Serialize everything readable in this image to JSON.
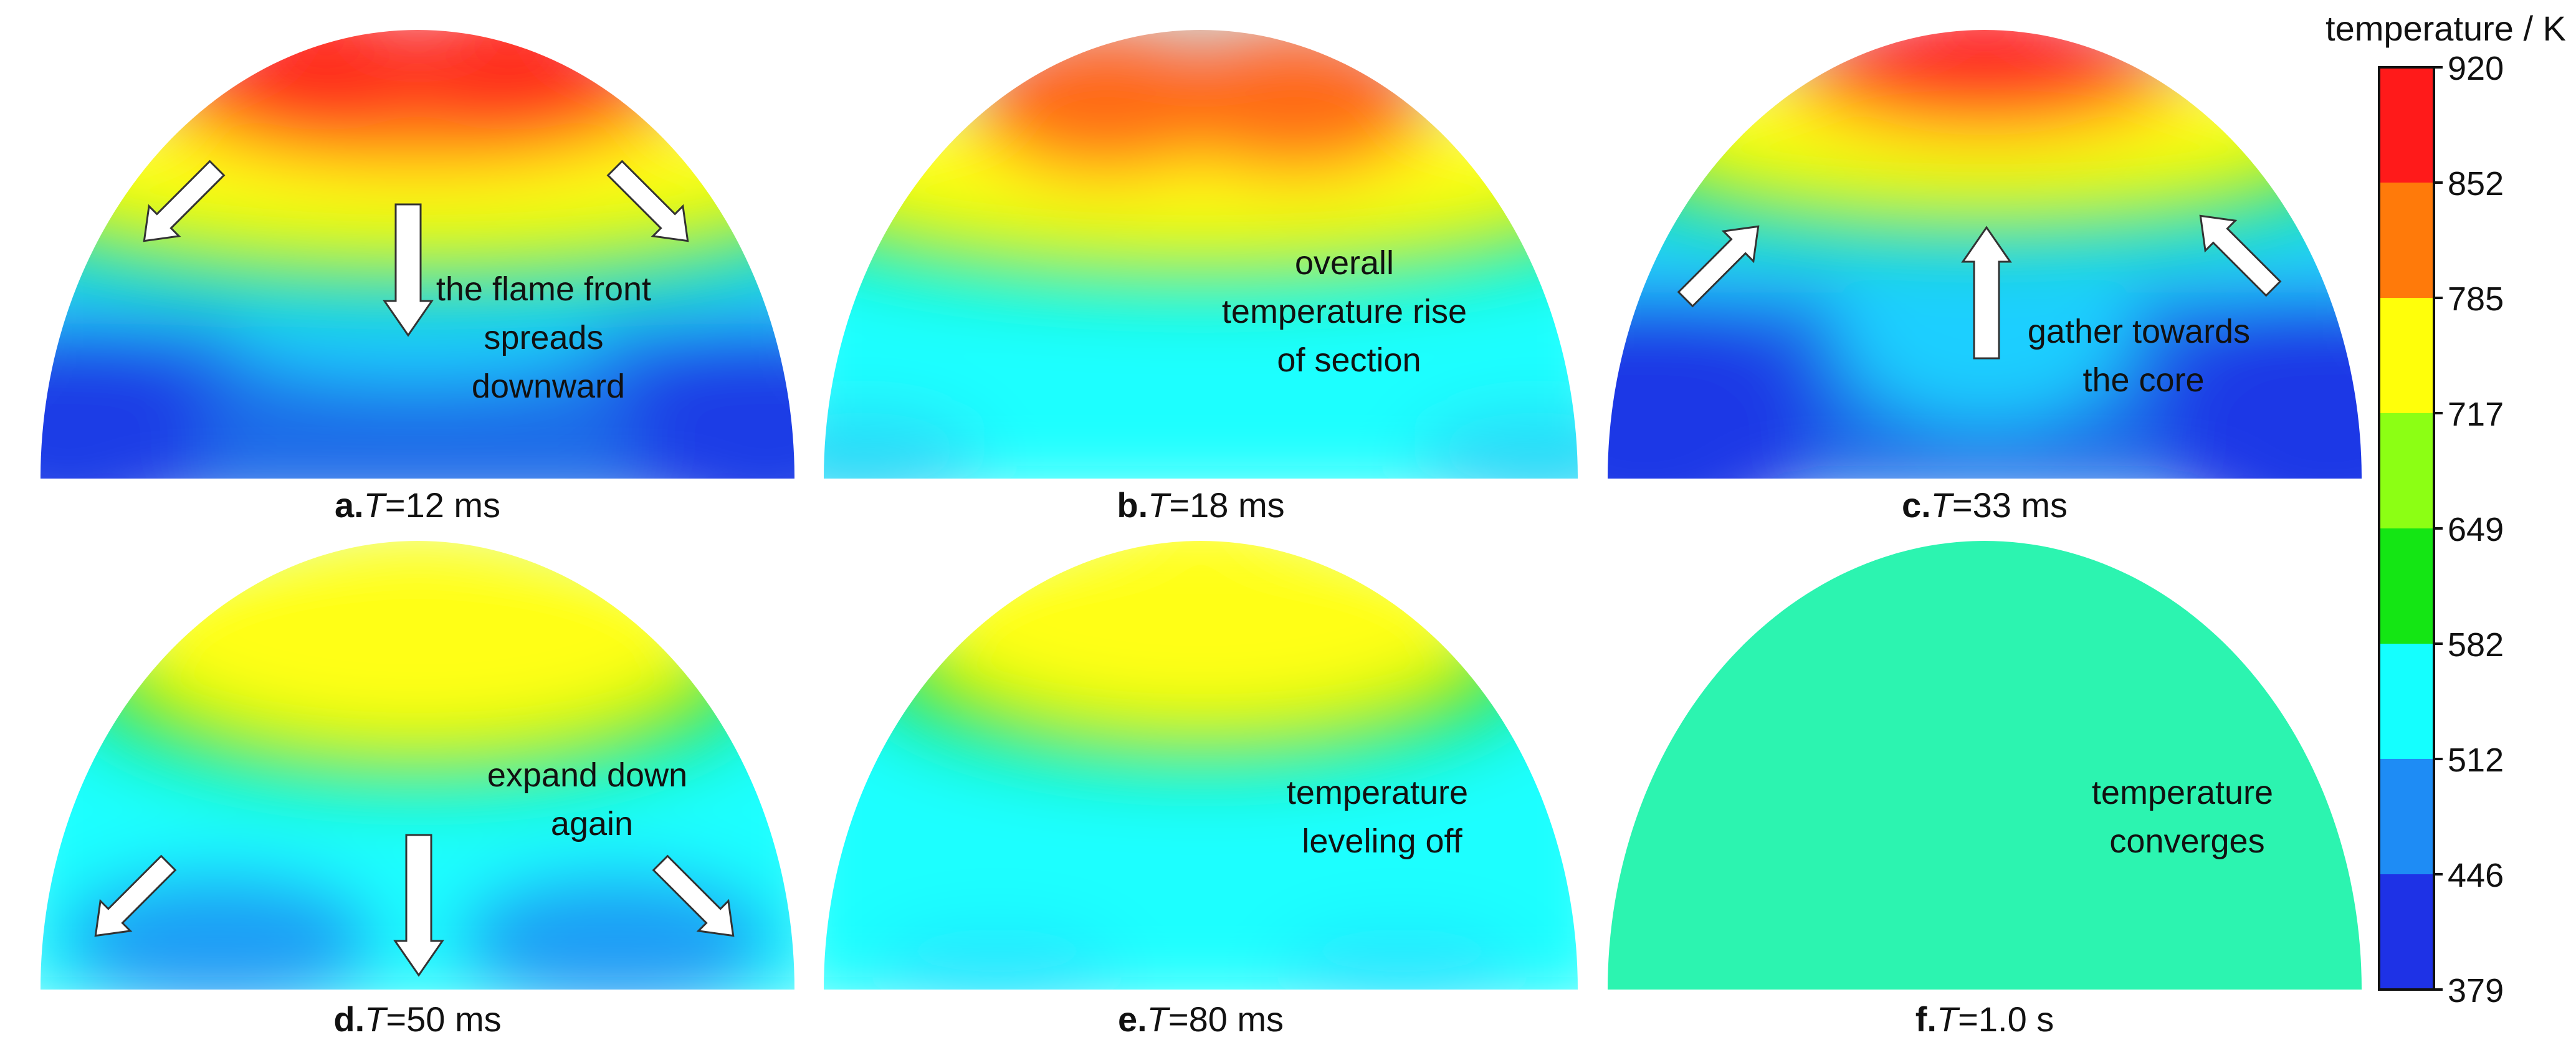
{
  "colorbar": {
    "title": "temperature / K",
    "ticks": [
      "920",
      "852",
      "785",
      "717",
      "649",
      "582",
      "512",
      "446",
      "379"
    ],
    "colors": [
      "#ff1a1a",
      "#ff7a0a",
      "#ffff0a",
      "#8cff14",
      "#14e614",
      "#14ffff",
      "#1e8cf5",
      "#1e32e6"
    ]
  },
  "panels": [
    {
      "letter": "a.",
      "var": "T",
      "value": "=12 ms",
      "annotation": [
        "the flame front",
        "spreads",
        "downward"
      ]
    },
    {
      "letter": "b.",
      "var": "T",
      "value": "=18 ms",
      "annotation": [
        "overall",
        "temperature rise",
        "of section"
      ]
    },
    {
      "letter": "c.",
      "var": "T",
      "value": "=33 ms",
      "annotation": [
        "gather towards",
        "the core"
      ]
    },
    {
      "letter": "d.",
      "var": "T",
      "value": "=50 ms",
      "annotation": [
        "expand down",
        "again"
      ]
    },
    {
      "letter": "e.",
      "var": "T",
      "value": "=80 ms",
      "annotation": [
        "temperature",
        "leveling off"
      ]
    },
    {
      "letter": "f.",
      "var": "T",
      "value": "=1.0 s",
      "annotation": [
        "temperature",
        "converges"
      ]
    }
  ]
}
